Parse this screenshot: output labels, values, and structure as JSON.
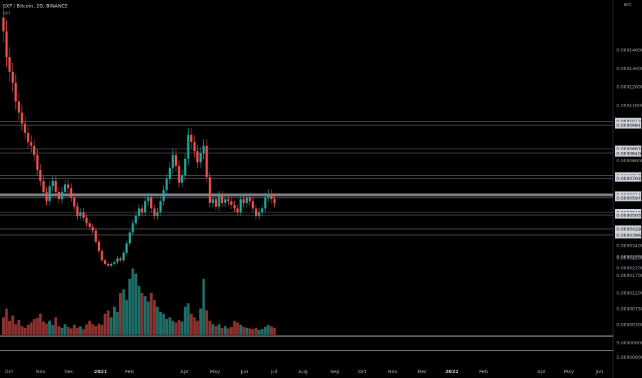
{
  "header": {
    "symbol": "SXP / Bitcoin, 2D, BINANCE",
    "volume_label": "Vol"
  },
  "axis": {
    "unit": "BTC"
  },
  "colors": {
    "up": "#26a69a",
    "down": "#ef5350",
    "up_vol": "#1f6f68",
    "down_vol": "#8f3230",
    "bg": "#000000",
    "line": "#8a8e99"
  },
  "chart_data": [
    {
      "type": "candlestick",
      "price_ylim": [
        1.8e-05,
        0.000164
      ],
      "y_ticks": [
        "0.00014000",
        "0.00013000",
        "0.00012000",
        "0.00011000",
        "0.00008000",
        "0.00003400",
        "0.00002800",
        "0.00002200"
      ],
      "horizontal_levels": [
        "0.00010122",
        "0.00009915",
        "0.00008626",
        "0.00008400",
        "0.00007177",
        "0.00007037",
        "0.00006140",
        "0.00005978",
        "0.00005189",
        "0.00005039",
        "0.00004293",
        "0.00003963"
      ],
      "x_tick_labels": [
        {
          "label": "Oct",
          "bold": false
        },
        {
          "label": "Nov",
          "bold": false
        },
        {
          "label": "Dec",
          "bold": false
        },
        {
          "label": "2021",
          "bold": true
        },
        {
          "label": "Feb",
          "bold": false
        },
        {
          "label": "Apr",
          "bold": false
        },
        {
          "label": "May",
          "bold": false
        },
        {
          "label": "Jun",
          "bold": false
        },
        {
          "label": "Jul",
          "bold": false
        },
        {
          "label": "Aug",
          "bold": false
        },
        {
          "label": "Sep",
          "bold": false
        },
        {
          "label": "Oct",
          "bold": false
        },
        {
          "label": "Nov",
          "bold": false
        },
        {
          "label": "Dec",
          "bold": false
        },
        {
          "label": "2022",
          "bold": true
        },
        {
          "label": "Feb",
          "bold": false
        },
        {
          "label": "Apr",
          "bold": false
        },
        {
          "label": "May",
          "bold": false
        },
        {
          "label": "Jun",
          "bold": false
        }
      ],
      "closes": [
        0.00015,
        0.000136,
        0.000128,
        0.000122,
        0.000112,
        0.000106,
        0.0001,
        9.5e-05,
        9e-05,
        8.8e-05,
        8.3e-05,
        7.5e-05,
        6.9e-05,
        6.3e-05,
        5.8e-05,
        6.6e-05,
        6.9e-05,
        6.3e-05,
        5.9e-05,
        6.3e-05,
        6.7e-05,
        6.5e-05,
        6e-05,
        5.5e-05,
        5e-05,
        5.2e-05,
        4.9e-05,
        4.6e-05,
        4.4e-05,
        4.2e-05,
        3.6e-05,
        3.1e-05,
        2.6e-05,
        2.4e-05,
        2.3e-05,
        2.4e-05,
        2.5e-05,
        2.7e-05,
        2.6e-05,
        3e-05,
        3.5e-05,
        4.1e-05,
        4.6e-05,
        5e-05,
        5.4e-05,
        5.2e-05,
        5.8e-05,
        6e-05,
        5.4e-05,
        5e-05,
        5.2e-05,
        5.8e-05,
        6.4e-05,
        7e-05,
        7.6e-05,
        8.3e-05,
        7.7e-05,
        6.8e-05,
        7.2e-05,
        8.1e-05,
        9.4e-05,
        9e-05,
        8.5e-05,
        7.9e-05,
        8.4e-05,
        8.8e-05,
        7.1e-05,
        5.7e-05,
        5.9e-05,
        5.5e-05,
        6.1e-05,
        5.7e-05,
        5.9e-05,
        5.8e-05,
        5.6e-05,
        5.4e-05,
        5.2e-05,
        5.9e-05,
        5.7e-05,
        6e-05,
        5.8e-05,
        5.4e-05,
        5e-05,
        5.2e-05,
        5.4e-05,
        6e-05,
        6.2e-05,
        5.9e-05,
        5.7e-05
      ],
      "volume": {
        "ylim": [
          0,
          2.5e-05
        ],
        "y_ticks": [
          "0.00002200",
          "0.00001700",
          "0.00001200",
          "0.00000750",
          "0.00000300"
        ],
        "values": [
          5e-06,
          7.5e-06,
          4e-06,
          5.5e-06,
          3e-06,
          4.2e-06,
          2.5e-06,
          2e-06,
          2.8e-06,
          3.5e-06,
          4.5e-06,
          4.8e-06,
          6e-06,
          3.8e-06,
          3.2e-06,
          4e-06,
          2.8e-06,
          5e-06,
          2.5e-06,
          2e-06,
          3e-06,
          2.2e-06,
          1.8e-06,
          2.8e-06,
          2e-06,
          2.4e-06,
          1.6e-06,
          3e-06,
          4e-06,
          3e-06,
          2.5e-06,
          3.2e-06,
          2.8e-06,
          6e-06,
          7e-06,
          5e-06,
          8e-06,
          6.5e-06,
          1.2e-05,
          1.3e-05,
          1e-05,
          1.6e-05,
          1.9e-05,
          1.75e-05,
          1.4e-05,
          1.2e-05,
          1.1e-05,
          9.5e-06,
          1.2e-05,
          1e-05,
          8e-06,
          6.5e-06,
          6e-06,
          4.5e-06,
          5e-06,
          4e-06,
          3.5e-06,
          4.2e-06,
          3.8e-06,
          8e-06,
          9e-06,
          6e-06,
          5e-06,
          4e-06,
          7.5e-06,
          1.6e-05,
          7e-06,
          4e-06,
          3e-06,
          2.5e-06,
          3e-06,
          2e-06,
          2.5e-06,
          1.8e-06,
          2.2e-06,
          4e-06,
          3.5e-06,
          2.8e-06,
          2.2e-06,
          2e-06,
          1.8e-06,
          1.6e-06,
          2e-06,
          1.4e-06,
          1.6e-06,
          2.2e-06,
          2.8e-06,
          2.4e-06,
          2e-06
        ]
      }
    },
    {
      "type": "line",
      "label": "5.00000000",
      "description": "lower indicator panel",
      "ticks": [
        "5.00000000",
        "5.00000000"
      ]
    }
  ]
}
